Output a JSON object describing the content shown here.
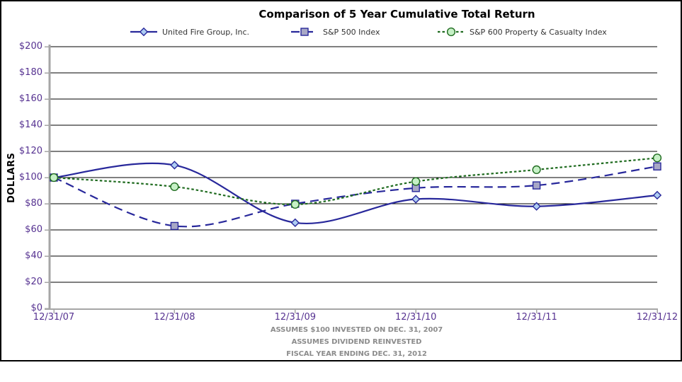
{
  "chart_data": {
    "type": "line",
    "title": "Comparison of 5 Year Cumulative Total Return",
    "ylabel": "DOLLARS",
    "xlabel": "",
    "categories": [
      "12/31/07",
      "12/31/08",
      "12/31/09",
      "12/31/10",
      "12/31/11",
      "12/31/12"
    ],
    "ylim": [
      0,
      200
    ],
    "ytick_step": 20,
    "ytick_prefix": "$",
    "grid": "horizontal",
    "legend_position": "top",
    "line_style": "smoothed",
    "series": [
      {
        "name": "United Fire Group, Inc.",
        "values": [
          100,
          109.5,
          65.5,
          83.5,
          78,
          86.5
        ],
        "color": "#28289B",
        "dash": "solid",
        "marker": "diamond",
        "marker_fill": "#AECDF2"
      },
      {
        "name": "S&P 500 Index",
        "values": [
          100,
          63,
          80,
          92,
          94,
          108.5
        ],
        "color": "#28289B",
        "dash": "long-dash",
        "marker": "square",
        "marker_fill": "#A8A8C6"
      },
      {
        "name": "S&P 600 Property & Casualty Index",
        "values": [
          100,
          93,
          79.5,
          97,
          106,
          115
        ],
        "color": "#1F6B1F",
        "dash": "dot",
        "marker": "circle",
        "marker_fill": "#C6F0C6"
      }
    ],
    "annotations": [
      "ASSUMES $100 INVESTED ON DEC. 31, 2007",
      "ASSUMES DIVIDEND REINVESTED",
      "FISCAL YEAR ENDING DEC. 31, 2012"
    ]
  },
  "colors": {
    "axis_label": "#563291",
    "axis_line": "#A6A6A6",
    "gridline": "#000000",
    "footnote": "#8C8C8C",
    "title_text": "#000000",
    "legend_text": "#333333",
    "frame_border": "#000000",
    "background": "#FFFFFF"
  }
}
